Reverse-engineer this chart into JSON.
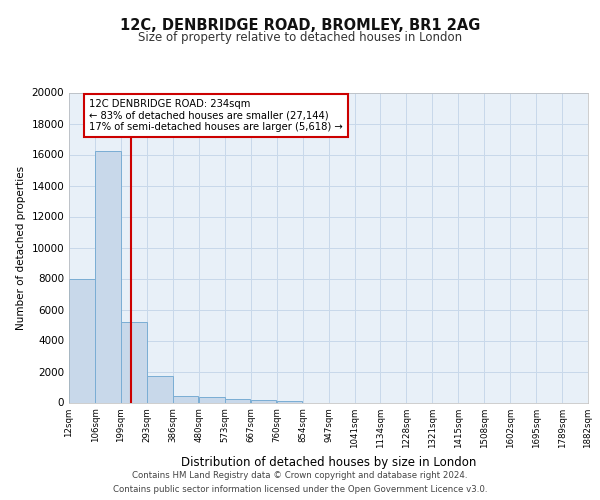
{
  "title1": "12C, DENBRIDGE ROAD, BROMLEY, BR1 2AG",
  "title2": "Size of property relative to detached houses in London",
  "xlabel": "Distribution of detached houses by size in London",
  "ylabel": "Number of detached properties",
  "bins": [
    "12sqm",
    "106sqm",
    "199sqm",
    "293sqm",
    "386sqm",
    "480sqm",
    "573sqm",
    "667sqm",
    "760sqm",
    "854sqm",
    "947sqm",
    "1041sqm",
    "1134sqm",
    "1228sqm",
    "1321sqm",
    "1415sqm",
    "1508sqm",
    "1602sqm",
    "1695sqm",
    "1789sqm",
    "1882sqm"
  ],
  "bin_lefts": [
    12,
    106,
    199,
    293,
    386,
    480,
    573,
    667,
    760,
    854,
    947,
    1041,
    1134,
    1228,
    1321,
    1415,
    1508,
    1602,
    1695,
    1789
  ],
  "bin_width": 93,
  "bar_values": [
    8000,
    16200,
    5200,
    1700,
    430,
    330,
    200,
    130,
    70,
    0,
    0,
    0,
    0,
    0,
    0,
    0,
    0,
    0,
    0,
    0
  ],
  "bar_color": "#c8d8ea",
  "bar_edge_color": "#7aadd4",
  "property_size": 234,
  "property_line_color": "#cc0000",
  "annotation_line1": "12C DENBRIDGE ROAD: 234sqm",
  "annotation_line2": "← 83% of detached houses are smaller (27,144)",
  "annotation_line3": "17% of semi-detached houses are larger (5,618) →",
  "annotation_box_color": "#ffffff",
  "annotation_border_color": "#cc0000",
  "ylim": [
    0,
    20000
  ],
  "yticks": [
    0,
    2000,
    4000,
    6000,
    8000,
    10000,
    12000,
    14000,
    16000,
    18000,
    20000
  ],
  "grid_color": "#c8d8ea",
  "background_color": "#e8f0f8",
  "footer1": "Contains HM Land Registry data © Crown copyright and database right 2024.",
  "footer2": "Contains public sector information licensed under the Open Government Licence v3.0."
}
